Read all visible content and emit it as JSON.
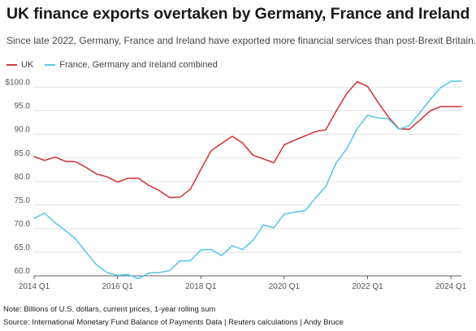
{
  "header": {
    "title": "UK finance exports overtaken by Germany, France and Ireland",
    "subtitle": "Since late 2022, Germany, France and Ireland have exported more financial services than post-Brexit Britain."
  },
  "footer": {
    "note": "Note: Billions of U.S. dollars, current prices, 1-year rolling sum",
    "source": "Source: International Monetary Fund Balance of Payments Data | Reuters calculations | Andy Bruce"
  },
  "chart_data": {
    "type": "line",
    "title": "UK finance exports overtaken by Germany, France and Ireland",
    "xlabel": "",
    "ylabel": "",
    "ylim": [
      60,
      102
    ],
    "y_ticks": [
      {
        "value": 60,
        "label": "60.0"
      },
      {
        "value": 65,
        "label": "65.0"
      },
      {
        "value": 70,
        "label": "70.0"
      },
      {
        "value": 75,
        "label": "75.0"
      },
      {
        "value": 80,
        "label": "80.0"
      },
      {
        "value": 85,
        "label": "85.0"
      },
      {
        "value": 90,
        "label": "90.0"
      },
      {
        "value": 95,
        "label": "95.0"
      },
      {
        "value": 100,
        "label": "$100.0"
      }
    ],
    "x": [
      "2014 Q1",
      "2014 Q2",
      "2014 Q3",
      "2014 Q4",
      "2015 Q1",
      "2015 Q2",
      "2015 Q3",
      "2015 Q4",
      "2016 Q1",
      "2016 Q2",
      "2016 Q3",
      "2016 Q4",
      "2017 Q1",
      "2017 Q2",
      "2017 Q3",
      "2017 Q4",
      "2018 Q1",
      "2018 Q2",
      "2018 Q3",
      "2018 Q4",
      "2019 Q1",
      "2019 Q2",
      "2019 Q3",
      "2019 Q4",
      "2020 Q1",
      "2020 Q2",
      "2020 Q3",
      "2020 Q4",
      "2021 Q1",
      "2021 Q2",
      "2021 Q3",
      "2021 Q4",
      "2022 Q1",
      "2022 Q2",
      "2022 Q3",
      "2022 Q4",
      "2023 Q1",
      "2023 Q2",
      "2023 Q3",
      "2023 Q4",
      "2024 Q1",
      "2024 Q2"
    ],
    "x_ticks": [
      {
        "index": 0,
        "label": "2014 Q1"
      },
      {
        "index": 8,
        "label": "2016 Q1"
      },
      {
        "index": 16,
        "label": "2018 Q1"
      },
      {
        "index": 24,
        "label": "2020 Q1"
      },
      {
        "index": 32,
        "label": "2022 Q1"
      },
      {
        "index": 40,
        "label": "2024 Q1"
      }
    ],
    "grid": true,
    "legend_position": "top-left",
    "series": [
      {
        "name": "UK",
        "color": "#d43a3a",
        "values": [
          85.3,
          84.5,
          85.2,
          84.3,
          84.2,
          83.0,
          81.6,
          81.0,
          79.9,
          80.7,
          80.7,
          79.2,
          78.1,
          76.6,
          76.7,
          78.4,
          82.6,
          86.6,
          88.1,
          89.6,
          88.2,
          85.6,
          84.8,
          84.0,
          87.8,
          88.8,
          89.7,
          90.6,
          91.0,
          95.0,
          98.7,
          101.2,
          100.2,
          96.8,
          93.7,
          91.2,
          91.1,
          93.0,
          95.0,
          95.9,
          95.9,
          95.9
        ]
      },
      {
        "name": "France, Germany and Ireland combined",
        "color": "#5bc8ec",
        "values": [
          72.2,
          73.3,
          71.3,
          69.6,
          67.8,
          65.0,
          62.3,
          60.7,
          60.1,
          60.3,
          59.4,
          60.6,
          60.7,
          61.1,
          63.2,
          63.2,
          65.5,
          65.6,
          64.3,
          66.4,
          65.6,
          67.5,
          70.8,
          70.2,
          73.1,
          73.5,
          73.8,
          76.5,
          79.0,
          84.0,
          87.0,
          91.2,
          94.1,
          93.5,
          93.3,
          91.1,
          91.9,
          94.6,
          97.4,
          99.9,
          101.3,
          101.3
        ]
      }
    ]
  }
}
